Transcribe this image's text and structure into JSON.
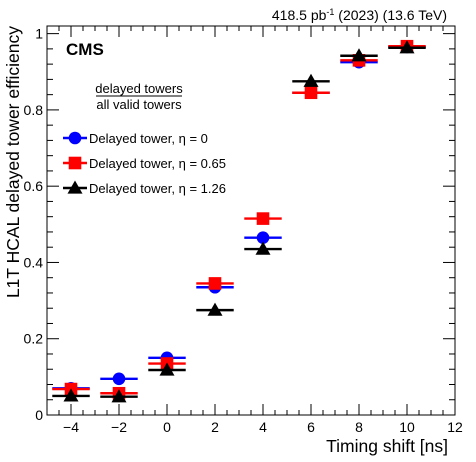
{
  "header": {
    "lumi_text": "418.5 pb",
    "lumi_sup": "-1",
    "lumi_rest": " (2023) (13.6 TeV)",
    "experiment": "CMS"
  },
  "fraction": {
    "numerator": "delayed towers",
    "denominator": "all valid towers"
  },
  "chart_data": {
    "type": "scatter",
    "xlabel": "Timing shift [ns]",
    "ylabel": "L1T HCAL delayed tower efficiency",
    "xlim": [
      -5,
      12
    ],
    "ylim": [
      0,
      1.02
    ],
    "x_ticks": [
      -4,
      -2,
      0,
      2,
      4,
      6,
      8,
      10,
      12
    ],
    "y_ticks": [
      0,
      0.2,
      0.4,
      0.6,
      0.8,
      1
    ],
    "legend_position": "top-left",
    "x": [
      -4,
      -2,
      0,
      2,
      4,
      6,
      8,
      10
    ],
    "series": [
      {
        "name": "Delayed tower, η = 0",
        "marker": "circle",
        "color": "#0000ff",
        "values": [
          0.07,
          0.095,
          0.15,
          0.335,
          0.465,
          0.845,
          0.925,
          0.965
        ]
      },
      {
        "name": "Delayed tower, η = 0.65",
        "marker": "square",
        "color": "#ff0000",
        "values": [
          0.068,
          0.057,
          0.135,
          0.345,
          0.515,
          0.845,
          0.93,
          0.967
        ]
      },
      {
        "name": "Delayed tower, η = 1.26",
        "marker": "triangle",
        "color": "#000000",
        "values": [
          0.05,
          0.048,
          0.118,
          0.275,
          0.435,
          0.875,
          0.942,
          0.963
        ]
      }
    ]
  }
}
